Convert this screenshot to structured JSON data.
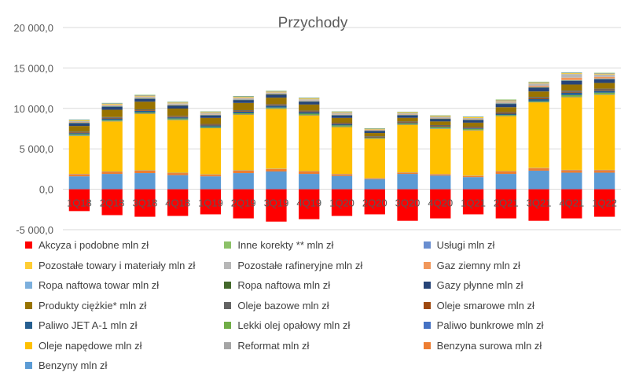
{
  "chart_data": {
    "type": "bar",
    "stacked": true,
    "title": "Przychody",
    "xlabel": "",
    "ylabel": "",
    "ylim": [
      -5000,
      20000
    ],
    "yticks": [
      -5000,
      0,
      5000,
      10000,
      15000,
      20000
    ],
    "ytick_labels": [
      "-5 000,0",
      "0,0",
      "5 000,0",
      "10 000,0",
      "15 000,0",
      "20 000,0"
    ],
    "grid": true,
    "legend_position": "bottom",
    "categories": [
      "1Q18",
      "2Q18",
      "3Q18",
      "4Q18",
      "1Q19",
      "2Q19",
      "3Q19",
      "4Q19",
      "1Q20",
      "2Q20",
      "3Q20",
      "4Q20",
      "1Q21",
      "2Q21",
      "3Q21",
      "4Q21",
      "1Q22"
    ],
    "series": [
      {
        "name": "Benzyny mln zł",
        "color": "#5b9bd5",
        "values": [
          1600,
          1900,
          2000,
          1750,
          1600,
          2000,
          2200,
          1900,
          1650,
          1250,
          1900,
          1700,
          1500,
          1900,
          2300,
          2050,
          2050
        ]
      },
      {
        "name": "Benzyna surowa mln zł",
        "color": "#ed7d31",
        "values": [
          250,
          250,
          300,
          250,
          200,
          300,
          300,
          300,
          200,
          100,
          150,
          150,
          150,
          300,
          300,
          300,
          300
        ]
      },
      {
        "name": "Reformat mln zł",
        "color": "#a5a5a5",
        "values": [
          50,
          50,
          50,
          50,
          50,
          50,
          50,
          50,
          50,
          30,
          40,
          40,
          40,
          50,
          50,
          50,
          50
        ]
      },
      {
        "name": "Oleje napędowe mln zł",
        "color": "#ffc000",
        "values": [
          4700,
          6200,
          7000,
          6500,
          5700,
          6900,
          7400,
          6900,
          5800,
          4900,
          5900,
          5600,
          5600,
          6800,
          8100,
          9000,
          9300
        ]
      },
      {
        "name": "Paliwo bunkrowe mln zł",
        "color": "#4472c4",
        "values": [
          50,
          50,
          50,
          50,
          50,
          50,
          50,
          50,
          50,
          30,
          40,
          40,
          40,
          50,
          50,
          50,
          50
        ]
      },
      {
        "name": "Lekki olej opałowy mln zł",
        "color": "#70ad47",
        "values": [
          150,
          100,
          100,
          150,
          150,
          100,
          100,
          150,
          150,
          80,
          100,
          150,
          150,
          100,
          100,
          200,
          200
        ]
      },
      {
        "name": "Paliwo JET A-1 mln zł",
        "color": "#255e91",
        "values": [
          150,
          200,
          200,
          150,
          150,
          200,
          250,
          200,
          150,
          30,
          80,
          80,
          80,
          150,
          250,
          300,
          250
        ]
      },
      {
        "name": "Oleje smarowe mln zł",
        "color": "#9e480e",
        "values": [
          80,
          80,
          80,
          80,
          80,
          80,
          80,
          80,
          80,
          60,
          80,
          80,
          80,
          100,
          100,
          100,
          100
        ]
      },
      {
        "name": "Oleje bazowe mln zł",
        "color": "#636363",
        "values": [
          100,
          100,
          100,
          100,
          100,
          100,
          100,
          100,
          100,
          80,
          100,
          100,
          100,
          100,
          150,
          150,
          150
        ]
      },
      {
        "name": "Produkty ciężkie* mln zł",
        "color": "#997300",
        "values": [
          700,
          900,
          950,
          900,
          750,
          900,
          800,
          750,
          600,
          400,
          450,
          450,
          500,
          600,
          700,
          750,
          700
        ]
      },
      {
        "name": "Gazy płynne mln zł",
        "color": "#264478",
        "values": [
          300,
          350,
          350,
          350,
          300,
          350,
          350,
          350,
          300,
          250,
          300,
          300,
          300,
          400,
          450,
          450,
          450
        ]
      },
      {
        "name": "Ropa naftowa mln zł",
        "color": "#43682b",
        "values": [
          50,
          50,
          50,
          50,
          50,
          50,
          50,
          50,
          50,
          30,
          40,
          40,
          40,
          50,
          50,
          50,
          50
        ]
      },
      {
        "name": "Ropa naftowa towar mln zł",
        "color": "#7cafdd",
        "values": [
          50,
          50,
          50,
          50,
          50,
          50,
          50,
          50,
          50,
          30,
          40,
          40,
          40,
          50,
          50,
          50,
          50
        ]
      },
      {
        "name": "Gaz ziemny mln zł",
        "color": "#f1975a",
        "values": [
          50,
          50,
          50,
          50,
          50,
          50,
          50,
          50,
          50,
          30,
          40,
          40,
          40,
          50,
          150,
          300,
          200
        ]
      },
      {
        "name": "Pozostałe rafineryjne mln zł",
        "color": "#b7b7b7",
        "values": [
          150,
          150,
          150,
          150,
          150,
          150,
          150,
          150,
          150,
          100,
          150,
          150,
          150,
          200,
          300,
          450,
          300
        ]
      },
      {
        "name": "Pozostałe towary i materiały mln zł",
        "color": "#ffcd33",
        "values": [
          100,
          100,
          100,
          100,
          100,
          100,
          100,
          100,
          100,
          80,
          100,
          100,
          100,
          100,
          100,
          100,
          100
        ]
      },
      {
        "name": "Usługi mln zł",
        "color": "#698ed0",
        "values": [
          60,
          60,
          60,
          60,
          60,
          60,
          60,
          60,
          60,
          40,
          50,
          50,
          50,
          60,
          60,
          60,
          60
        ]
      },
      {
        "name": "Inne korekty ** mln zł",
        "color": "#8cc168",
        "values": [
          40,
          40,
          40,
          40,
          40,
          40,
          40,
          40,
          40,
          30,
          30,
          30,
          30,
          40,
          40,
          40,
          40
        ]
      },
      {
        "name": "Akcyza i podobne mln zł",
        "color": "#ff0000",
        "values": [
          -2700,
          -3200,
          -3400,
          -3300,
          -3100,
          -3600,
          -4000,
          -3700,
          -3300,
          -3100,
          -3900,
          -3600,
          -3100,
          -3600,
          -3900,
          -3600,
          -3400
        ]
      }
    ]
  },
  "legend": {
    "rows": [
      [
        "Akcyza i podobne mln zł",
        "Inne korekty ** mln zł",
        "Usługi mln zł"
      ],
      [
        "Pozostałe towary i materiały mln zł",
        "Pozostałe rafineryjne mln zł",
        "Gaz ziemny mln zł"
      ],
      [
        "Ropa naftowa towar mln zł",
        "Ropa naftowa mln zł",
        "Gazy płynne mln zł"
      ],
      [
        "Produkty ciężkie* mln zł",
        "Oleje bazowe mln zł",
        "Oleje smarowe mln zł"
      ],
      [
        "Paliwo JET A-1 mln zł",
        "Lekki olej opałowy mln zł",
        "Paliwo bunkrowe mln zł"
      ],
      [
        "Oleje napędowe mln zł",
        "Reformat mln zł",
        "Benzyna surowa mln zł"
      ],
      [
        "Benzyny mln zł"
      ]
    ]
  }
}
